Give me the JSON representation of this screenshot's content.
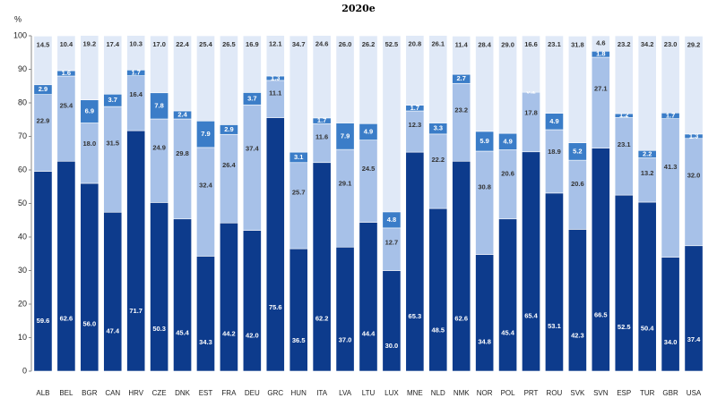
{
  "chart_data": {
    "type": "stacked-bar",
    "title": "2020e",
    "y_label": "%",
    "categories": [
      "ALB",
      "BEL",
      "BGR",
      "CAN",
      "HRV",
      "CZE",
      "DNK",
      "EST",
      "FRA",
      "DEU",
      "GRC",
      "HUN",
      "ITA",
      "LVA",
      "LTU",
      "LUX",
      "MNE",
      "NLD",
      "NMK",
      "NOR",
      "POL",
      "PRT",
      "ROU",
      "SVK",
      "SVN",
      "ESP",
      "TUR",
      "GBR",
      "USA"
    ],
    "series": [
      {
        "color": "#0d3b8c",
        "values": [
          59.6,
          62.6,
          56.0,
          47.4,
          71.7,
          50.3,
          45.4,
          34.3,
          44.2,
          42.0,
          75.6,
          36.5,
          62.2,
          37.0,
          44.4,
          30.0,
          65.3,
          48.5,
          62.6,
          34.8,
          45.4,
          65.4,
          53.1,
          42.3,
          66.5,
          52.5,
          50.4,
          34.0,
          37.4
        ],
        "value_labels": [
          "59.6",
          "62.6",
          "56.0",
          "47.4",
          "71.7",
          "50.3",
          "45.4",
          "34.3",
          "44.2",
          "42.0",
          "75.6",
          "36.5",
          "62.2",
          "37.0",
          "44.4",
          "30.0",
          "65.3",
          "48.5",
          "62.6",
          "34.8",
          "45.4",
          "65.4",
          "53.1",
          "42.3",
          "66.5",
          "52.5",
          "50.4",
          "34.0",
          "37.4"
        ]
      },
      {
        "color": "#a7c1e8",
        "values": [
          22.9,
          25.4,
          18.0,
          31.5,
          16.4,
          24.9,
          29.8,
          32.4,
          26.4,
          37.4,
          11.1,
          25.7,
          11.6,
          29.1,
          24.5,
          12.7,
          12.3,
          22.2,
          23.2,
          30.8,
          20.6,
          17.8,
          18.9,
          20.6,
          27.1,
          23.1,
          13.2,
          41.3,
          32.0
        ],
        "value_labels": [
          "22.9",
          "25.4",
          "18.0",
          "31.5",
          "16.4",
          "24.9",
          "29.8",
          "32.4",
          "26.4",
          "37.4",
          "11.1",
          "25.7",
          "11.6",
          "29.1",
          "24.5",
          "12.7",
          "12.3",
          "22.2",
          "23.2",
          "30.8",
          "20.6",
          "17.8",
          "18.9",
          "20.6",
          "27.1",
          "23.1",
          "13.2",
          "41.3",
          "32.0"
        ]
      },
      {
        "color": "#3b7dc8",
        "values": [
          2.9,
          1.6,
          6.9,
          3.7,
          1.7,
          7.8,
          2.4,
          7.9,
          2.9,
          3.7,
          1.3,
          3.1,
          1.7,
          7.9,
          4.9,
          4.8,
          1.7,
          3.3,
          2.7,
          5.9,
          4.9,
          0.2,
          4.9,
          5.2,
          1.8,
          1.2,
          2.2,
          1.7,
          1.3
        ],
        "value_labels": [
          "2.9",
          "1.6",
          "6.9",
          "3.7",
          "1.7",
          "7.8",
          "2.4",
          "7.9",
          "2.9",
          "3.7",
          "1.3",
          "3.1",
          "1.7",
          "7.9",
          "4.9",
          "4.8",
          "1.7",
          "3.3",
          "2.7",
          "5.9",
          "4.9",
          "0.2",
          "4.9",
          "5.2",
          "1.8",
          "1.2",
          "2.2",
          "1.7",
          "1.3"
        ]
      },
      {
        "color": "#e0e9f7",
        "values": [
          14.5,
          10.4,
          19.2,
          17.4,
          10.3,
          17.0,
          22.4,
          25.4,
          26.5,
          16.9,
          12.1,
          34.7,
          24.6,
          26.0,
          26.2,
          52.5,
          20.8,
          26.1,
          11.4,
          28.4,
          29.0,
          16.6,
          23.1,
          31.8,
          4.6,
          23.2,
          34.2,
          23.0,
          29.2
        ],
        "value_labels": [
          "14.5",
          "10.4",
          "19.2",
          "17.4",
          "10.3",
          "17.0",
          "22.4",
          "25.4",
          "26.5",
          "16.9",
          "12.1",
          "34.7",
          "24.6",
          "26.0",
          "26.2",
          "52.5",
          "20.8",
          "26.1",
          "11.4",
          "28.4",
          "29.0",
          "16.6",
          "23.1",
          "31.8",
          "4.6",
          "23.2",
          "34.2",
          "23.0",
          "29.2"
        ]
      }
    ],
    "ylim": [
      0,
      100
    ],
    "yticks": [
      0,
      10,
      20,
      30,
      40,
      50,
      60,
      70,
      80,
      90,
      100
    ],
    "grid": false
  }
}
